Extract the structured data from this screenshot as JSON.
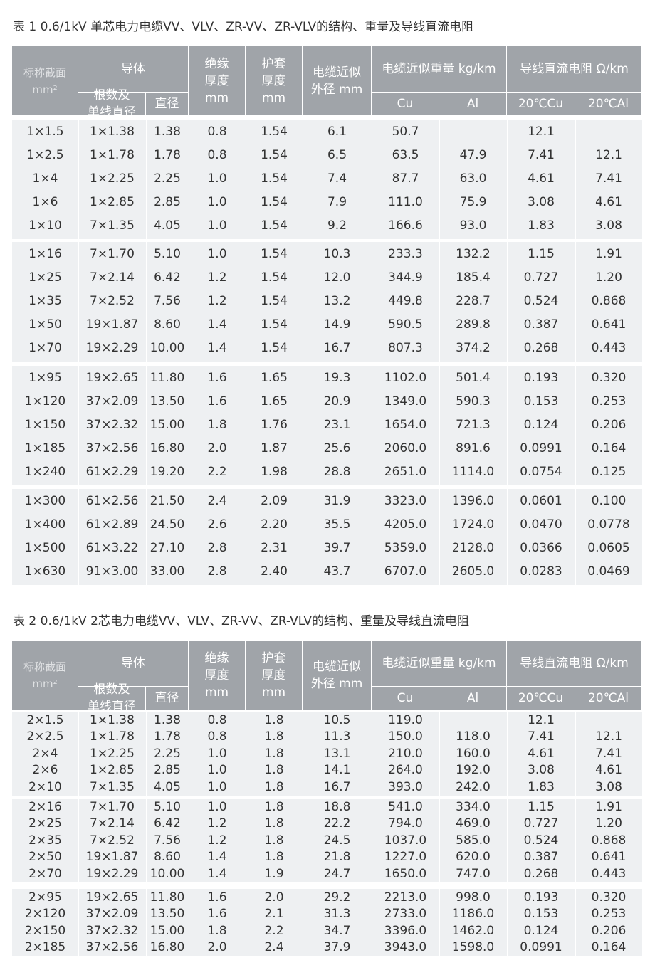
{
  "tables": [
    {
      "title": "表 1  0.6/1kV 单芯电力电缆VV、VLV、ZR-VV、ZR-VLV的结构、重量及导线直流电阻",
      "header": {
        "section": [
          "标称截面",
          "mm²"
        ],
        "conductor": "导体",
        "strands": [
          "根数及",
          "单线直径"
        ],
        "diameter": "直径",
        "insulation": [
          "绝缘",
          "厚度",
          "mm"
        ],
        "sheath": [
          "护套",
          "厚度",
          "mm"
        ],
        "outer": [
          "电缆近似",
          "外径 mm"
        ],
        "weight": "电缆近似重量 kg/km",
        "cu": "Cu",
        "al": "Al",
        "resistance": "导线直流电阻 Ω/km",
        "r_cu": "20℃Cu",
        "r_al": "20℃Al"
      },
      "groups": [
        [
          [
            "1×1.5",
            "1×1.38",
            "1.38",
            "0.8",
            "1.54",
            "6.1",
            "50.7",
            null,
            "12.1",
            null
          ],
          [
            "1×2.5",
            "1×1.78",
            "1.78",
            "0.8",
            "1.54",
            "6.5",
            "63.5",
            "47.9",
            "7.41",
            "12.1"
          ],
          [
            "1×4",
            "1×2.25",
            "2.25",
            "1.0",
            "1.54",
            "7.4",
            "87.7",
            "63.0",
            "4.61",
            "7.41"
          ],
          [
            "1×6",
            "1×2.85",
            "2.85",
            "1.0",
            "1.54",
            "7.9",
            "111.0",
            "75.9",
            "3.08",
            "4.61"
          ],
          [
            "1×10",
            "7×1.35",
            "4.05",
            "1.0",
            "1.54",
            "9.2",
            "166.6",
            "93.0",
            "1.83",
            "3.08"
          ]
        ],
        [
          [
            "1×16",
            "7×1.70",
            "5.10",
            "1.0",
            "1.54",
            "10.3",
            "233.3",
            "132.2",
            "1.15",
            "1.91"
          ],
          [
            "1×25",
            "7×2.14",
            "6.42",
            "1.2",
            "1.54",
            "12.0",
            "344.9",
            "185.4",
            "0.727",
            "1.20"
          ],
          [
            "1×35",
            "7×2.52",
            "7.56",
            "1.2",
            "1.54",
            "13.2",
            "449.8",
            "228.7",
            "0.524",
            "0.868"
          ],
          [
            "1×50",
            "19×1.87",
            "8.60",
            "1.4",
            "1.54",
            "14.9",
            "590.5",
            "289.8",
            "0.387",
            "0.641"
          ],
          [
            "1×70",
            "19×2.29",
            "10.00",
            "1.4",
            "1.54",
            "16.7",
            "807.3",
            "374.2",
            "0.268",
            "0.443"
          ]
        ],
        [
          [
            "1×95",
            "19×2.65",
            "11.80",
            "1.6",
            "1.65",
            "19.3",
            "1102.0",
            "501.4",
            "0.193",
            "0.320"
          ],
          [
            "1×120",
            "37×2.09",
            "13.50",
            "1.6",
            "1.65",
            "20.9",
            "1349.0",
            "590.3",
            "0.153",
            "0.253"
          ],
          [
            "1×150",
            "37×2.32",
            "15.00",
            "1.8",
            "1.76",
            "23.1",
            "1654.0",
            "721.3",
            "0.124",
            "0.206"
          ],
          [
            "1×185",
            "37×2.56",
            "16.80",
            "2.0",
            "1.87",
            "25.6",
            "2060.0",
            "891.6",
            "0.0991",
            "0.164"
          ],
          [
            "1×240",
            "61×2.29",
            "19.20",
            "2.2",
            "1.98",
            "28.8",
            "2651.0",
            "1114.0",
            "0.0754",
            "0.125"
          ]
        ],
        [
          [
            "1×300",
            "61×2.56",
            "21.50",
            "2.4",
            "2.09",
            "31.9",
            "3323.0",
            "1396.0",
            "0.0601",
            "0.100"
          ],
          [
            "1×400",
            "61×2.89",
            "24.50",
            "2.6",
            "2.20",
            "35.5",
            "4205.0",
            "1724.0",
            "0.0470",
            "0.0778"
          ],
          [
            "1×500",
            "61×3.22",
            "27.10",
            "2.8",
            "2.31",
            "39.7",
            "5359.0",
            "2128.0",
            "0.0366",
            "0.0605"
          ],
          [
            "1×630",
            "91×3.00",
            "33.00",
            "2.8",
            "2.40",
            "43.7",
            "6707.0",
            "2605.0",
            "0.0283",
            "0.0469"
          ]
        ]
      ]
    },
    {
      "title": "表 2  0.6/1kV 2芯电力电缆VV、VLV、ZR-VV、ZR-VLV的结构、重量及导线直流电阻",
      "header": {
        "section": [
          "标称截面",
          "mm²"
        ],
        "conductor": "导体",
        "strands": [
          "根数及",
          "单线直径"
        ],
        "diameter": "直径",
        "insulation": [
          "绝缘",
          "厚度",
          "mm"
        ],
        "sheath": [
          "护套",
          "厚度",
          "mm"
        ],
        "outer": [
          "电缆近似",
          "外径 mm"
        ],
        "weight": "电缆近似重量 kg/km",
        "cu": "Cu",
        "al": "Al",
        "resistance": "导线直流电阻 Ω/km",
        "r_cu": "20℃Cu",
        "r_al": "20℃Al"
      },
      "groups": [
        [
          [
            "2×1.5",
            "1×1.38",
            "1.38",
            "0.8",
            "1.8",
            "10.5",
            "119.0",
            null,
            "12.1",
            null
          ],
          [
            "2×2.5",
            "1×1.78",
            "1.78",
            "0.8",
            "1.8",
            "11.3",
            "150.0",
            "118.0",
            "7.41",
            "12.1"
          ],
          [
            "2×4",
            "1×2.25",
            "2.25",
            "1.0",
            "1.8",
            "13.1",
            "210.0",
            "160.0",
            "4.61",
            "7.41"
          ],
          [
            "2×6",
            "1×2.85",
            "2.85",
            "1.0",
            "1.8",
            "14.1",
            "264.0",
            "192.0",
            "3.08",
            "4.61"
          ],
          [
            "2×10",
            "7×1.35",
            "4.05",
            "1.0",
            "1.8",
            "16.7",
            "393.0",
            "242.0",
            "1.83",
            "3.08"
          ]
        ],
        [
          [
            "2×16",
            "7×1.70",
            "5.10",
            "1.0",
            "1.8",
            "18.8",
            "541.0",
            "334.0",
            "1.15",
            "1.91"
          ],
          [
            "2×25",
            "7×2.14",
            "6.42",
            "1.2",
            "1.8",
            "22.2",
            "794.0",
            "469.0",
            "0.727",
            "1.20"
          ],
          [
            "2×35",
            "7×2.52",
            "7.56",
            "1.2",
            "1.8",
            "24.5",
            "1037.0",
            "585.0",
            "0.524",
            "0.868"
          ],
          [
            "2×50",
            "19×1.87",
            "8.60",
            "1.4",
            "1.8",
            "21.8",
            "1227.0",
            "620.0",
            "0.387",
            "0.641"
          ],
          [
            "2×70",
            "19×2.29",
            "10.00",
            "1.4",
            "1.9",
            "24.7",
            "1650.0",
            "747.0",
            "0.268",
            "0.443"
          ]
        ],
        [
          [
            "2×95",
            "19×2.65",
            "11.80",
            "1.6",
            "2.0",
            "29.2",
            "2213.0",
            "998.0",
            "0.193",
            "0.320"
          ],
          [
            "2×120",
            "37×2.09",
            "13.50",
            "1.6",
            "2.1",
            "31.3",
            "2733.0",
            "1186.0",
            "0.153",
            "0.253"
          ],
          [
            "2×150",
            "37×2.32",
            "15.00",
            "1.8",
            "2.2",
            "34.7",
            "3396.0",
            "1462.0",
            "0.124",
            "0.206"
          ],
          [
            "2×185",
            "37×2.56",
            "16.80",
            "2.0",
            "2.4",
            "37.9",
            "3943.0",
            "1598.0",
            "0.0991",
            "0.164"
          ]
        ]
      ]
    }
  ]
}
